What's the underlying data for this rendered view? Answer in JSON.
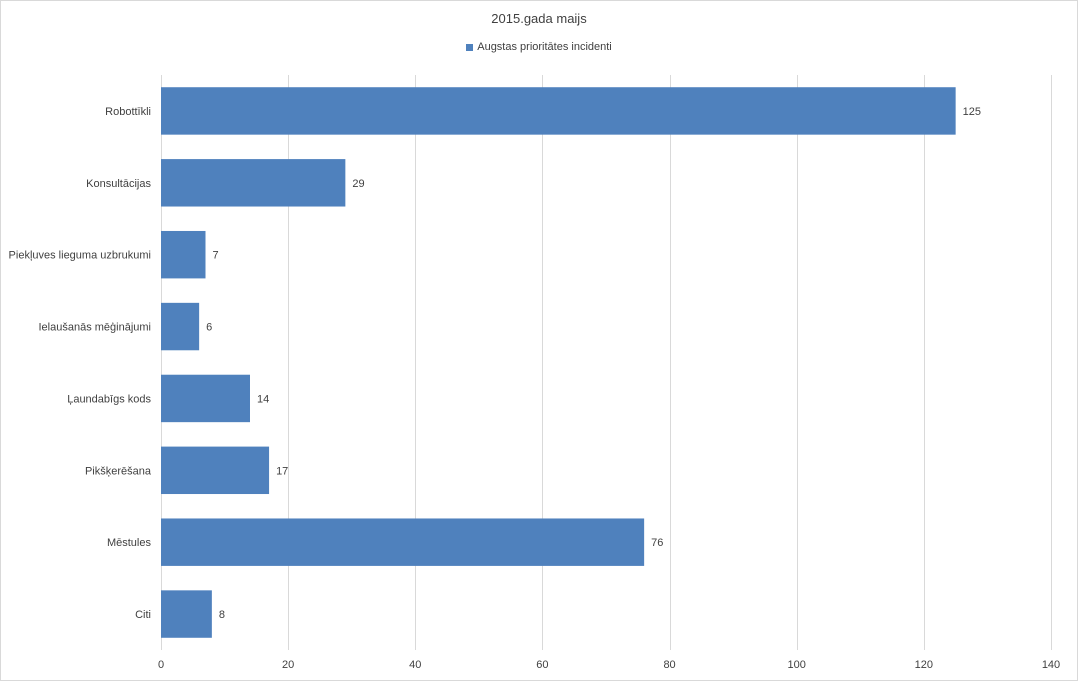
{
  "chart_data": {
    "type": "bar",
    "orientation": "horizontal",
    "title": "2015.gada maijs",
    "categories": [
      "Robottīkli",
      "Konsultācijas",
      "Piekļuves lieguma uzbrukumi",
      "Ielaušanās mēģinājumi",
      "Ļaundabīgs kods",
      "Pikšķerēšana",
      "Mēstules",
      "Citi"
    ],
    "series": [
      {
        "name": "Augstas prioritātes incidenti",
        "values": [
          125,
          29,
          7,
          6,
          14,
          17,
          76,
          8
        ],
        "color": "#4f81bd"
      }
    ],
    "xlim": [
      0,
      140
    ],
    "xticks": [
      0,
      20,
      40,
      60,
      80,
      100,
      120,
      140
    ],
    "xlabel": "",
    "ylabel": "",
    "grid": "vertical",
    "legend": "top-center",
    "data_labels": true
  }
}
